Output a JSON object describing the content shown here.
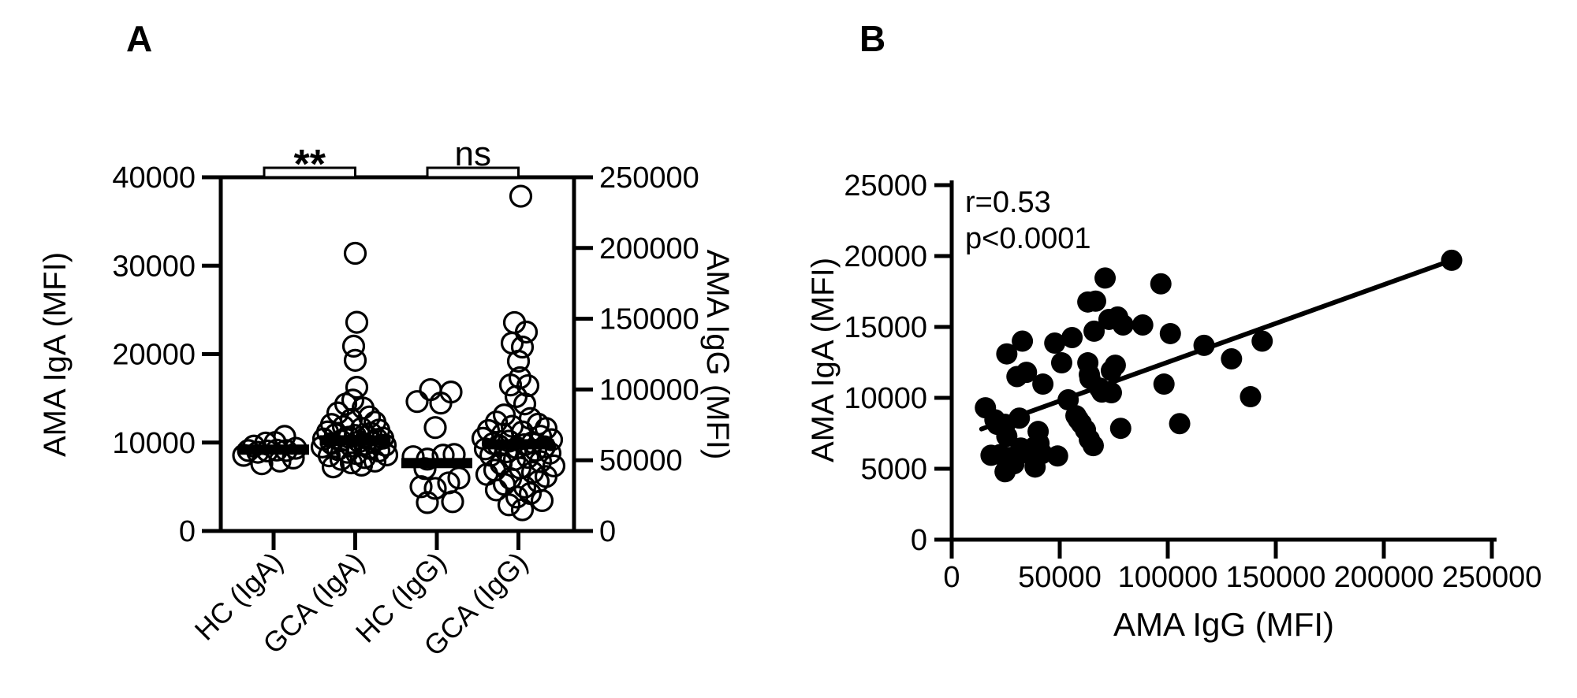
{
  "figure_labels": {
    "panel_a": "A",
    "panel_b": "B"
  },
  "colors": {
    "ink": "#000000",
    "background": "#ffffff"
  },
  "chart_data": [
    {
      "id": "panel_a",
      "type": "scatter",
      "subtype": "column-scatter-with-median-bars",
      "title": "",
      "grid": false,
      "legend": null,
      "marker": "open-circle",
      "y_left": {
        "title": "AMA IgA (MFI)",
        "range": [
          0,
          40000
        ],
        "ticks": [
          "0",
          "10000",
          "20000",
          "30000",
          "40000"
        ]
      },
      "y_right": {
        "title": "AMA IgG (MFI)",
        "range": [
          0,
          250000
        ],
        "ticks": [
          "0",
          "50000",
          "100000",
          "150000",
          "200000",
          "250000"
        ]
      },
      "categories": [
        "HC (IgA)",
        "GCA (IgA)",
        "HC (IgG)",
        "GCA (IgG)"
      ],
      "significance": [
        {
          "label": "**",
          "between": [
            0,
            1
          ]
        },
        {
          "label": "ns",
          "between": [
            2,
            3
          ]
        }
      ],
      "groups": [
        {
          "category": "HC (IgA)",
          "axis": "left",
          "median": 9200,
          "points": [
            [
              -38,
              8550
            ],
            [
              -25,
              9600
            ],
            [
              -32,
              9100
            ],
            [
              -20,
              8900
            ],
            [
              -8,
              9050
            ],
            [
              4,
              9150
            ],
            [
              16,
              9100
            ],
            [
              28,
              9350
            ],
            [
              -10,
              9950
            ],
            [
              2,
              10000
            ],
            [
              14,
              10700
            ],
            [
              8,
              7900
            ],
            [
              25,
              8250
            ],
            [
              -15,
              7600
            ]
          ]
        },
        {
          "category": "GCA (IgA)",
          "axis": "left",
          "median": 10250,
          "points": [
            [
              0,
              31400
            ],
            [
              2,
              23600
            ],
            [
              -2,
              20900
            ],
            [
              0,
              19300
            ],
            [
              2,
              16250
            ],
            [
              -3,
              14800
            ],
            [
              -12,
              14350
            ],
            [
              10,
              13900
            ],
            [
              -22,
              13350
            ],
            [
              18,
              12900
            ],
            [
              -5,
              12600
            ],
            [
              25,
              12300
            ],
            [
              -30,
              12050
            ],
            [
              -15,
              11800
            ],
            [
              8,
              11600
            ],
            [
              30,
              11400
            ],
            [
              -35,
              11200
            ],
            [
              20,
              11050
            ],
            [
              -25,
              10900
            ],
            [
              0,
              10800
            ],
            [
              15,
              10700
            ],
            [
              -8,
              10600
            ],
            [
              35,
              10500
            ],
            [
              -40,
              10400
            ],
            [
              28,
              10350
            ],
            [
              -18,
              10200
            ],
            [
              5,
              10100
            ],
            [
              22,
              10000
            ],
            [
              -30,
              9900
            ],
            [
              12,
              9800
            ],
            [
              38,
              9700
            ],
            [
              -5,
              9600
            ],
            [
              -42,
              9500
            ],
            [
              18,
              9350
            ],
            [
              -22,
              9200
            ],
            [
              30,
              9050
            ],
            [
              -10,
              8900
            ],
            [
              2,
              8750
            ],
            [
              40,
              8600
            ],
            [
              -33,
              8500
            ],
            [
              12,
              8300
            ],
            [
              -18,
              8100
            ],
            [
              25,
              7900
            ],
            [
              -5,
              7700
            ],
            [
              8,
              7450
            ],
            [
              -28,
              7250
            ]
          ]
        },
        {
          "category": "HC (IgG)",
          "axis": "right",
          "median": 48000,
          "points": [
            [
              -8,
              99900
            ],
            [
              18,
              98200
            ],
            [
              -25,
              91500
            ],
            [
              5,
              90400
            ],
            [
              -2,
              73100
            ],
            [
              22,
              54100
            ],
            [
              8,
              53600
            ],
            [
              -12,
              50800
            ],
            [
              -30,
              52500
            ],
            [
              -15,
              44100
            ],
            [
              28,
              37400
            ],
            [
              15,
              34000
            ],
            [
              -20,
              31300
            ],
            [
              -2,
              30100
            ],
            [
              20,
              20700
            ],
            [
              -12,
              20100
            ]
          ]
        },
        {
          "category": "GCA (IgG)",
          "axis": "right",
          "median": 61300,
          "points": [
            [
              3,
              236600
            ],
            [
              -5,
              147300
            ],
            [
              10,
              140600
            ],
            [
              -8,
              132800
            ],
            [
              5,
              130000
            ],
            [
              0,
              120000
            ],
            [
              2,
              108300
            ],
            [
              -10,
              103200
            ],
            [
              12,
              102700
            ],
            [
              -3,
              95000
            ],
            [
              8,
              89800
            ],
            [
              -18,
              82000
            ],
            [
              15,
              79500
            ],
            [
              -28,
              77000
            ],
            [
              25,
              75500
            ],
            [
              -8,
              74000
            ],
            [
              35,
              72500
            ],
            [
              -38,
              71000
            ],
            [
              5,
              70000
            ],
            [
              -20,
              68500
            ],
            [
              28,
              67000
            ],
            [
              -45,
              65500
            ],
            [
              42,
              64500
            ],
            [
              -12,
              63500
            ],
            [
              18,
              62500
            ],
            [
              -32,
              61800
            ],
            [
              8,
              61000
            ],
            [
              -25,
              60300
            ],
            [
              33,
              59500
            ],
            [
              -2,
              58800
            ],
            [
              -42,
              58000
            ],
            [
              22,
              57000
            ],
            [
              -15,
              56000
            ],
            [
              40,
              55000
            ],
            [
              -35,
              53500
            ],
            [
              12,
              52000
            ],
            [
              -5,
              50500
            ],
            [
              28,
              49000
            ],
            [
              -22,
              47500
            ],
            [
              45,
              46000
            ],
            [
              2,
              44500
            ],
            [
              -30,
              43000
            ],
            [
              18,
              41500
            ],
            [
              -40,
              40000
            ],
            [
              35,
              38500
            ],
            [
              -10,
              37000
            ],
            [
              25,
              35000
            ],
            [
              -18,
              33000
            ],
            [
              8,
              31000
            ],
            [
              -28,
              29000
            ],
            [
              15,
              26500
            ],
            [
              -2,
              24000
            ],
            [
              30,
              21500
            ],
            [
              -12,
              18500
            ],
            [
              5,
              15000
            ]
          ]
        }
      ]
    },
    {
      "id": "panel_b",
      "type": "scatter",
      "title": "",
      "grid": false,
      "legend": null,
      "marker": "filled-circle",
      "xlabel": "AMA IgG (MFI)",
      "ylabel": "AMA IgA (MFI)",
      "xlim": [
        0,
        250000
      ],
      "ylim": [
        0,
        25000
      ],
      "x_ticks": [
        "0",
        "50000",
        "100000",
        "150000",
        "200000",
        "250000"
      ],
      "y_ticks": [
        "0",
        "5000",
        "10000",
        "15000",
        "20000",
        "25000"
      ],
      "annotations": {
        "r": "r=0.53",
        "p": "p<0.0001"
      },
      "regression_line": {
        "x1": 13800,
        "y1": 7800,
        "x2": 231400,
        "y2": 19700
      },
      "points": [
        [
          15600,
          9300
        ],
        [
          18200,
          5950
        ],
        [
          20000,
          8450
        ],
        [
          21100,
          8130
        ],
        [
          22500,
          6000
        ],
        [
          24700,
          8130
        ],
        [
          24700,
          4790
        ],
        [
          25500,
          7290
        ],
        [
          25500,
          13100
        ],
        [
          26600,
          5790
        ],
        [
          28800,
          5350
        ],
        [
          30200,
          11500
        ],
        [
          31300,
          8570
        ],
        [
          32000,
          6460
        ],
        [
          32700,
          14000
        ],
        [
          34600,
          11800
        ],
        [
          35700,
          6070
        ],
        [
          38200,
          6520
        ],
        [
          38600,
          5120
        ],
        [
          40000,
          7630
        ],
        [
          40400,
          6790
        ],
        [
          41800,
          6070
        ],
        [
          42200,
          10970
        ],
        [
          47700,
          13860
        ],
        [
          49000,
          5900
        ],
        [
          50900,
          12470
        ],
        [
          53900,
          9860
        ],
        [
          55700,
          14250
        ],
        [
          57500,
          8740
        ],
        [
          58600,
          8470
        ],
        [
          60000,
          8180
        ],
        [
          61900,
          7740
        ],
        [
          63000,
          12470
        ],
        [
          63000,
          16760
        ],
        [
          63700,
          11640
        ],
        [
          63700,
          7070
        ],
        [
          64000,
          11360
        ],
        [
          65500,
          6630
        ],
        [
          65900,
          14700
        ],
        [
          66600,
          16820
        ],
        [
          68400,
          10690
        ],
        [
          69500,
          10410
        ],
        [
          71000,
          18450
        ],
        [
          72800,
          15530
        ],
        [
          73900,
          11920
        ],
        [
          73900,
          10360
        ],
        [
          75700,
          12300
        ],
        [
          76800,
          15700
        ],
        [
          78200,
          7850
        ],
        [
          79300,
          15140
        ],
        [
          88400,
          15140
        ],
        [
          96800,
          18040
        ],
        [
          98250,
          10970
        ],
        [
          101200,
          14530
        ],
        [
          105500,
          8180
        ],
        [
          116800,
          13700
        ],
        [
          129500,
          12750
        ],
        [
          138300,
          10080
        ],
        [
          143700,
          14000
        ],
        [
          231400,
          19700
        ]
      ]
    }
  ]
}
